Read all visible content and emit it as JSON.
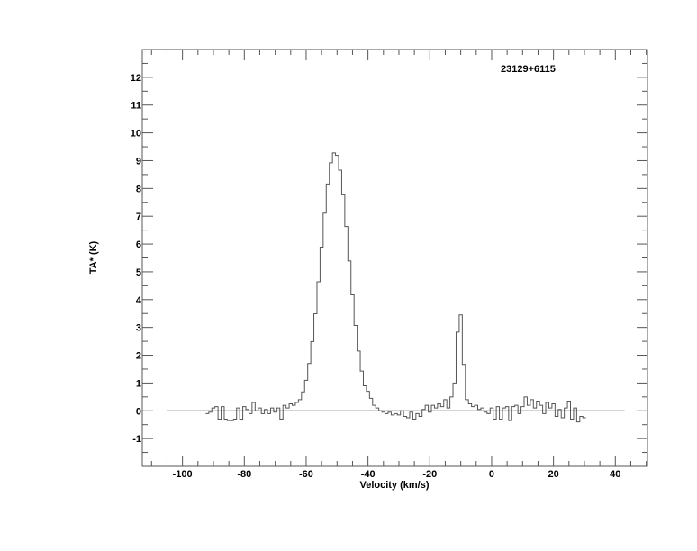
{
  "chart_data": {
    "type": "line",
    "step": true,
    "annotation": "23129+6115",
    "xlabel": "Velocity (km/s)",
    "ylabel": "TA* (K)",
    "xlim": [
      -113,
      50.4
    ],
    "ylim": [
      -2,
      13
    ],
    "xticks": [
      -100,
      -80,
      -60,
      -40,
      -20,
      0,
      20,
      40
    ],
    "xtick_labels": [
      "-100",
      "-80",
      "-60",
      "-40",
      "-20",
      "0",
      "20",
      "40"
    ],
    "yticks": [
      -1,
      0,
      1,
      2,
      3,
      4,
      5,
      6,
      7,
      8,
      9,
      10,
      11,
      12
    ],
    "ytick_labels": [
      "-1",
      "0",
      "1",
      "2",
      "3",
      "4",
      "5",
      "6",
      "7",
      "8",
      "9",
      "10",
      "11",
      "12"
    ],
    "baseline": {
      "y": 0,
      "x_range": [
        -105,
        43
      ]
    },
    "grid": false,
    "line_color": "#555555",
    "series": [
      {
        "x": [
          -92,
          -91,
          -90,
          -89,
          -88,
          -87,
          -86,
          -85,
          -84,
          -83,
          -82,
          -81,
          -80,
          -79,
          -78,
          -77,
          -76,
          -75,
          -74,
          -73,
          -72,
          -71,
          -70,
          -69,
          -68,
          -67,
          -66,
          -65,
          -64,
          -63,
          -62,
          -61,
          -60,
          -59,
          -58,
          -57,
          -56,
          -55,
          -54,
          -53,
          -52,
          -51,
          -50,
          -49,
          -48,
          -47,
          -46,
          -45,
          -44,
          -43,
          -42,
          -41,
          -40,
          -39,
          -38,
          -37,
          -36,
          -35,
          -34,
          -33,
          -32,
          -31,
          -30,
          -29,
          -28,
          -27,
          -26,
          -25,
          -24,
          -23,
          -22,
          -21,
          -20,
          -19,
          -18,
          -17,
          -16,
          -15,
          -14,
          -13,
          -12,
          -11,
          -10,
          -9,
          -8,
          -7,
          -6,
          -5,
          -4,
          -3,
          -2,
          -1,
          0,
          1,
          2,
          3,
          4,
          5,
          6,
          7,
          8,
          9,
          10,
          11,
          12,
          13,
          14,
          15,
          16,
          17,
          18,
          19,
          20,
          21,
          22,
          23,
          24,
          25,
          26,
          27,
          28,
          29,
          30
        ],
        "y": [
          -0.1,
          -0.05,
          0.1,
          0.15,
          -0.3,
          0.15,
          -0.3,
          -0.35,
          -0.35,
          -0.3,
          0.1,
          -0.3,
          0.15,
          0.05,
          -0.1,
          0.3,
          0.0,
          0.1,
          -0.1,
          0.05,
          -0.1,
          0.1,
          -0.05,
          0.1,
          -0.3,
          0.2,
          0.1,
          0.25,
          0.2,
          0.3,
          0.4,
          0.68,
          1.1,
          1.7,
          2.49,
          3.49,
          4.64,
          5.89,
          7.11,
          8.16,
          8.92,
          9.28,
          9.19,
          8.66,
          7.77,
          6.63,
          5.39,
          4.17,
          3.07,
          2.15,
          1.43,
          0.9,
          0.7,
          0.45,
          0.2,
          0.1,
          0.0,
          -0.05,
          -0.1,
          -0.05,
          -0.15,
          -0.1,
          -0.15,
          0.0,
          -0.2,
          -0.25,
          -0.05,
          -0.3,
          -0.1,
          -0.2,
          0.05,
          0.2,
          -0.05,
          0.2,
          0.1,
          0.25,
          0.15,
          0.4,
          0.1,
          0.5,
          1.0,
          2.83,
          3.45,
          1.67,
          0.4,
          0.25,
          0.15,
          0.2,
          0.05,
          0.1,
          -0.05,
          -0.1,
          0.1,
          -0.3,
          0.15,
          -0.3,
          0.1,
          0.15,
          -0.35,
          0.15,
          0.2,
          -0.1,
          0.15,
          0.5,
          0.2,
          0.4,
          0.1,
          0.35,
          0.2,
          -0.1,
          0.3,
          0.1,
          0.25,
          -0.2,
          0.05,
          -0.25,
          0.1,
          0.35,
          -0.3,
          0.1,
          -0.4,
          -0.2,
          -0.25
        ]
      }
    ]
  }
}
